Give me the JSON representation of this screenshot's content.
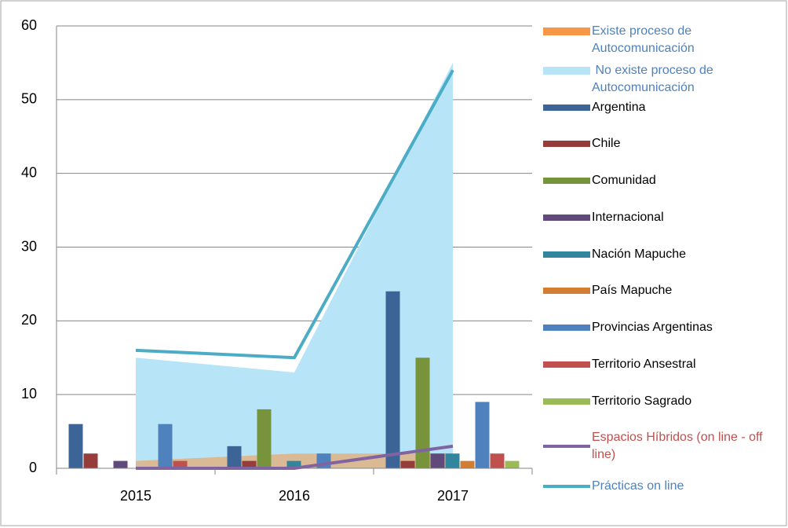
{
  "chart_data": {
    "type": "bar",
    "categories": [
      "2015",
      "2016",
      "2017"
    ],
    "ylim": [
      0,
      60
    ],
    "yticks": [
      0,
      10,
      20,
      30,
      40,
      50,
      60
    ],
    "grid": true,
    "series": [
      {
        "name": "Existe proceso de Autocomunicación",
        "type": "area",
        "color": "#f79646",
        "label_color": "#4f81bd",
        "values": [
          1,
          2,
          2
        ]
      },
      {
        "name": " No existe proceso de Autocomunicación",
        "type": "area",
        "color": "#b7e4f7",
        "label_color": "#4f81bd",
        "values": [
          15,
          13,
          55
        ]
      },
      {
        "name": "Argentina",
        "type": "bar",
        "color": "#3c6496",
        "values": [
          6,
          3,
          24
        ]
      },
      {
        "name": "Chile",
        "type": "bar",
        "color": "#963c3a",
        "values": [
          2,
          1,
          1
        ]
      },
      {
        "name": "Comunidad",
        "type": "bar",
        "color": "#77933c",
        "values": [
          0,
          8,
          15
        ]
      },
      {
        "name": "Internacional",
        "type": "bar",
        "color": "#604a7b",
        "values": [
          1,
          0,
          2
        ]
      },
      {
        "name": "Nación Mapuche",
        "type": "bar",
        "color": "#31859c",
        "values": [
          0,
          1,
          2
        ]
      },
      {
        "name": "País Mapuche",
        "type": "bar",
        "color": "#d27d32",
        "values": [
          0,
          0,
          1
        ]
      },
      {
        "name": "Provincias Argentinas",
        "type": "bar",
        "color": "#4f81bd",
        "values": [
          6,
          2,
          9
        ]
      },
      {
        "name": "Territorio Ansestral",
        "type": "bar",
        "color": "#c0504d",
        "values": [
          1,
          0,
          2
        ]
      },
      {
        "name": "Territorio Sagrado",
        "type": "bar",
        "color": "#9bbb59",
        "values": [
          0,
          0,
          1
        ]
      },
      {
        "name": "Espacios Híbridos (on line - off line)",
        "type": "line",
        "color": "#8064a2",
        "label_color": "#c0504d",
        "values": [
          0,
          0,
          3
        ]
      },
      {
        "name": "Prácticas on line",
        "type": "line",
        "color": "#4bacc6",
        "label_color": "#4f81bd",
        "values": [
          16,
          15,
          54
        ]
      }
    ]
  }
}
